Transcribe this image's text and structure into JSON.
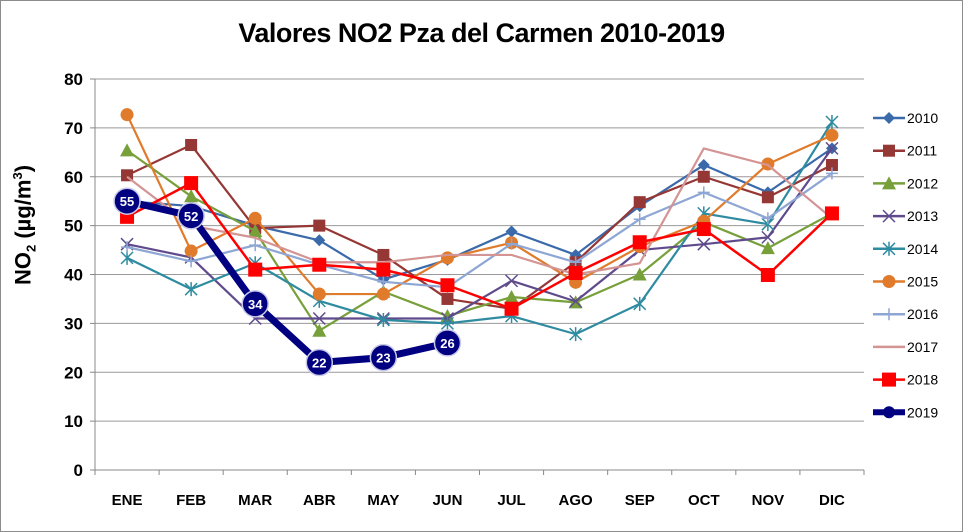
{
  "chart_data": {
    "type": "line",
    "title": "Valores NO2 Pza del Carmen 2010-2019",
    "xlabel": "",
    "ylabel": "NO2 (µg/m3)",
    "ylabel_parts": {
      "base": "NO",
      "sub": "2",
      "unit_open": " (µg/m",
      "sup": "3",
      "unit_close": ")"
    },
    "ylim": [
      0,
      80
    ],
    "yticks": [
      0,
      10,
      20,
      30,
      40,
      50,
      60,
      70,
      80
    ],
    "grid": true,
    "legend_position": "right",
    "categories": [
      "ENE",
      "FEB",
      "MAR",
      "ABR",
      "MAY",
      "JUN",
      "JUL",
      "AGO",
      "SEP",
      "OCT",
      "NOV",
      "DIC"
    ],
    "series": [
      {
        "name": "2010",
        "color": "#3A6AAA",
        "marker": "diamond",
        "values": [
          55,
          54,
          50,
          47,
          39,
          43,
          48.8,
          44,
          54,
          62.4,
          56.8,
          65.8
        ]
      },
      {
        "name": "2011",
        "color": "#953735",
        "marker": "square",
        "values": [
          60.3,
          66.5,
          49.5,
          50,
          44,
          35,
          33,
          42.5,
          54.8,
          60,
          55.8,
          62.4
        ]
      },
      {
        "name": "2012",
        "color": "#77A03A",
        "marker": "triangle",
        "values": [
          65.4,
          56,
          48.9,
          28.5,
          36.5,
          31.5,
          35.4,
          34.3,
          40,
          50.7,
          45.4,
          52.5
        ]
      },
      {
        "name": "2013",
        "color": "#5F4B8B",
        "marker": "x",
        "values": [
          46.2,
          43.5,
          31,
          31,
          31,
          31,
          38.7,
          34.5,
          45,
          46.2,
          47.6,
          65.8
        ]
      },
      {
        "name": "2014",
        "color": "#2E8BA0",
        "marker": "star",
        "values": [
          43.4,
          37,
          42.3,
          34.6,
          30.7,
          30,
          31.5,
          27.8,
          34,
          52.5,
          50.3,
          71.2
        ]
      },
      {
        "name": "2015",
        "color": "#E07B2C",
        "marker": "circle",
        "values": [
          72.7,
          44.8,
          51.5,
          36,
          36,
          43.4,
          46.5,
          38.4,
          45.7,
          50.9,
          62.6,
          68.5
        ]
      },
      {
        "name": "2016",
        "color": "#8EA6D3",
        "marker": "plus",
        "values": [
          45.6,
          42.7,
          46,
          42,
          38.5,
          37.4,
          46.3,
          42.5,
          51.3,
          56.8,
          51.5,
          60.7
        ]
      },
      {
        "name": "2017",
        "color": "#D49494",
        "marker": "none",
        "values": [
          60,
          50,
          47.5,
          42.5,
          42.5,
          44,
          44,
          40,
          42.3,
          65.8,
          62.4,
          51.5
        ]
      },
      {
        "name": "2018",
        "color": "#FF0000",
        "marker": "square-big",
        "values": [
          51.8,
          58.7,
          41,
          42,
          41,
          37.8,
          33,
          40.3,
          46.6,
          49.3,
          39.9,
          52.5
        ]
      },
      {
        "name": "2019",
        "color": "#000080",
        "marker": "circle-label",
        "values": [
          55,
          52,
          34,
          22,
          23,
          26,
          null,
          null,
          null,
          null,
          null,
          null
        ],
        "data_labels": [
          "55",
          "52",
          "34",
          "22",
          "23",
          "26"
        ]
      }
    ]
  }
}
